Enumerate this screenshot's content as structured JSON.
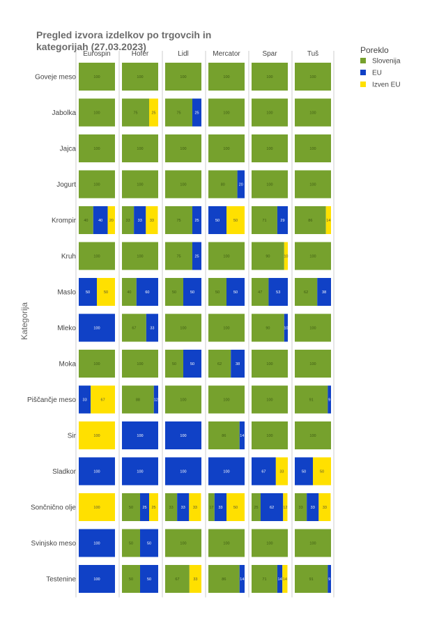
{
  "chart_data": {
    "type": "bar",
    "orientation": "horizontal",
    "stacked": "percent",
    "title": "Pregled izvora izdelkov po trgovcih in kategorijah (27.03.2023)",
    "title_lines": [
      "Pregled izvora izdelkov po trgovcih in",
      " kategorijah (27.03.2023)"
    ],
    "ylabel": "Kategorija",
    "xlabel": "",
    "facets": [
      "Eurospin",
      "Hofer",
      "Lidl",
      "Mercator",
      "Spar",
      "Tuš"
    ],
    "categories": [
      "Goveje meso",
      "Jabolka",
      "Jajca",
      "Jogurt",
      "Krompir",
      "Kruh",
      "Maslo",
      "Mleko",
      "Moka",
      "Piščančje meso",
      "Sir",
      "Sladkor",
      "Sončnično olje",
      "Svinjsko meso",
      "Testenine"
    ],
    "legend": {
      "title": "Poreklo",
      "position": "top-right",
      "items": [
        {
          "name": "Slovenija",
          "color": "#76a12d"
        },
        {
          "name": "EU",
          "color": "#1041c6"
        },
        {
          "name": "Izven EU",
          "color": "#ffe000"
        }
      ]
    },
    "series_order": [
      "Slovenija",
      "EU",
      "Izven EU"
    ],
    "values": {
      "Eurospin": [
        [
          100,
          0,
          0
        ],
        [
          100,
          0,
          0
        ],
        [
          100,
          0,
          0
        ],
        [
          100,
          0,
          0
        ],
        [
          40,
          40,
          20
        ],
        [
          100,
          0,
          0
        ],
        [
          0,
          50,
          50
        ],
        [
          0,
          100,
          0
        ],
        [
          100,
          0,
          0
        ],
        [
          0,
          33,
          67
        ],
        [
          0,
          0,
          100
        ],
        [
          0,
          100,
          0
        ],
        [
          0,
          0,
          100
        ],
        [
          0,
          100,
          0
        ],
        [
          0,
          100,
          0
        ]
      ],
      "Hofer": [
        [
          100,
          0,
          0
        ],
        [
          75,
          0,
          25
        ],
        [
          100,
          0,
          0
        ],
        [
          100,
          0,
          0
        ],
        [
          33,
          33,
          33
        ],
        [
          100,
          0,
          0
        ],
        [
          40,
          60,
          0
        ],
        [
          67,
          33,
          0
        ],
        [
          100,
          0,
          0
        ],
        [
          88,
          12,
          0
        ],
        [
          0,
          100,
          0
        ],
        [
          0,
          100,
          0
        ],
        [
          50,
          25,
          25
        ],
        [
          50,
          50,
          0
        ],
        [
          50,
          50,
          0
        ]
      ],
      "Lidl": [
        [
          100,
          0,
          0
        ],
        [
          75,
          25,
          0
        ],
        [
          100,
          0,
          0
        ],
        [
          100,
          0,
          0
        ],
        [
          75,
          25,
          0
        ],
        [
          75,
          25,
          0
        ],
        [
          50,
          50,
          0
        ],
        [
          100,
          0,
          0
        ],
        [
          50,
          50,
          0
        ],
        [
          100,
          0,
          0
        ],
        [
          0,
          100,
          0
        ],
        [
          0,
          100,
          0
        ],
        [
          33,
          33,
          33
        ],
        [
          100,
          0,
          0
        ],
        [
          67,
          0,
          33
        ]
      ],
      "Mercator": [
        [
          100,
          0,
          0
        ],
        [
          100,
          0,
          0
        ],
        [
          100,
          0,
          0
        ],
        [
          80,
          20,
          0
        ],
        [
          0,
          50,
          50
        ],
        [
          100,
          0,
          0
        ],
        [
          50,
          50,
          0
        ],
        [
          100,
          0,
          0
        ],
        [
          62,
          38,
          0
        ],
        [
          100,
          0,
          0
        ],
        [
          86,
          14,
          0
        ],
        [
          0,
          100,
          0
        ],
        [
          17,
          33,
          50
        ],
        [
          100,
          0,
          0
        ],
        [
          86,
          14,
          0
        ]
      ],
      "Spar": [
        [
          100,
          0,
          0
        ],
        [
          100,
          0,
          0
        ],
        [
          100,
          0,
          0
        ],
        [
          100,
          0,
          0
        ],
        [
          71,
          29,
          0
        ],
        [
          90,
          0,
          10
        ],
        [
          47,
          53,
          0
        ],
        [
          90,
          10,
          0
        ],
        [
          100,
          0,
          0
        ],
        [
          100,
          0,
          0
        ],
        [
          100,
          0,
          0
        ],
        [
          0,
          67,
          33
        ],
        [
          25,
          62,
          12
        ],
        [
          100,
          0,
          0
        ],
        [
          71,
          14,
          14
        ]
      ],
      "Tuš": [
        [
          100,
          0,
          0
        ],
        [
          100,
          0,
          0
        ],
        [
          100,
          0,
          0
        ],
        [
          100,
          0,
          0
        ],
        [
          86,
          0,
          14
        ],
        [
          100,
          0,
          0
        ],
        [
          62,
          38,
          0
        ],
        [
          100,
          0,
          0
        ],
        [
          100,
          0,
          0
        ],
        [
          91,
          9,
          0
        ],
        [
          100,
          0,
          0
        ],
        [
          0,
          50,
          50
        ],
        [
          33,
          33,
          33
        ],
        [
          100,
          0,
          0
        ],
        [
          91,
          9,
          0
        ]
      ]
    },
    "labels": {
      "Eurospin": [
        [
          "100",
          "",
          ""
        ],
        [
          "100",
          "",
          ""
        ],
        [
          "100",
          "",
          ""
        ],
        [
          "100",
          "",
          ""
        ],
        [
          "40",
          "40",
          "20"
        ],
        [
          "100",
          "",
          ""
        ],
        [
          "",
          "50",
          "50"
        ],
        [
          "",
          "100",
          ""
        ],
        [
          "100",
          "",
          ""
        ],
        [
          "",
          "33",
          "67"
        ],
        [
          "",
          "",
          "100"
        ],
        [
          "",
          "100",
          ""
        ],
        [
          "",
          "",
          "100"
        ],
        [
          "",
          "100",
          ""
        ],
        [
          "",
          "100",
          ""
        ]
      ],
      "Hofer": [
        [
          "100",
          "",
          ""
        ],
        [
          "75",
          "",
          "25"
        ],
        [
          "100",
          "",
          ""
        ],
        [
          "100",
          "",
          ""
        ],
        [
          "33",
          "33",
          "33"
        ],
        [
          "100",
          "",
          ""
        ],
        [
          "40",
          "60",
          ""
        ],
        [
          "67",
          "33",
          ""
        ],
        [
          "100",
          "",
          ""
        ],
        [
          "88",
          "12",
          ""
        ],
        [
          "",
          "100",
          ""
        ],
        [
          "",
          "100",
          ""
        ],
        [
          "50",
          "25",
          "25"
        ],
        [
          "50",
          "50",
          ""
        ],
        [
          "50",
          "50",
          ""
        ]
      ],
      "Lidl": [
        [
          "100",
          "",
          ""
        ],
        [
          "75",
          "25",
          ""
        ],
        [
          "100",
          "",
          ""
        ],
        [
          "100",
          "",
          ""
        ],
        [
          "75",
          "25",
          ""
        ],
        [
          "75",
          "25",
          ""
        ],
        [
          "50",
          "50",
          ""
        ],
        [
          "100",
          "",
          ""
        ],
        [
          "50",
          "50",
          ""
        ],
        [
          "100",
          "",
          ""
        ],
        [
          "",
          "100",
          ""
        ],
        [
          "",
          "100",
          ""
        ],
        [
          "33",
          "33",
          "33"
        ],
        [
          "100",
          "",
          ""
        ],
        [
          "67",
          "",
          "33"
        ]
      ],
      "Mercator": [
        [
          "100",
          "",
          ""
        ],
        [
          "100",
          "",
          ""
        ],
        [
          "100",
          "",
          ""
        ],
        [
          "80",
          "20",
          ""
        ],
        [
          "",
          "50",
          "50"
        ],
        [
          "100",
          "",
          ""
        ],
        [
          "50",
          "50",
          ""
        ],
        [
          "100",
          "",
          ""
        ],
        [
          "62",
          "38",
          ""
        ],
        [
          "100",
          "",
          ""
        ],
        [
          "86",
          "14",
          ""
        ],
        [
          "",
          "100",
          ""
        ],
        [
          "17",
          "33",
          "50"
        ],
        [
          "100",
          "",
          ""
        ],
        [
          "86",
          "14",
          ""
        ]
      ],
      "Spar": [
        [
          "100",
          "",
          ""
        ],
        [
          "100",
          "",
          ""
        ],
        [
          "100",
          "",
          ""
        ],
        [
          "100",
          "",
          ""
        ],
        [
          "71",
          "29",
          ""
        ],
        [
          "90",
          "",
          "10"
        ],
        [
          "47",
          "53",
          ""
        ],
        [
          "90",
          "10",
          ""
        ],
        [
          "100",
          "",
          ""
        ],
        [
          "100",
          "",
          ""
        ],
        [
          "100",
          "",
          ""
        ],
        [
          "",
          "67",
          "33"
        ],
        [
          "25",
          "62",
          "12"
        ],
        [
          "100",
          "",
          ""
        ],
        [
          "71",
          "14",
          "14"
        ]
      ],
      "Tuš": [
        [
          "100",
          "",
          ""
        ],
        [
          "100",
          "",
          ""
        ],
        [
          "100",
          "",
          ""
        ],
        [
          "100",
          "",
          ""
        ],
        [
          "86",
          "",
          "14"
        ],
        [
          "100",
          "",
          ""
        ],
        [
          "62",
          "38",
          ""
        ],
        [
          "100",
          "",
          ""
        ],
        [
          "100",
          "",
          ""
        ],
        [
          "91",
          "9",
          ""
        ],
        [
          "100",
          "",
          ""
        ],
        [
          "",
          "50",
          "50"
        ],
        [
          "33",
          "33",
          "33"
        ],
        [
          "100",
          "",
          ""
        ],
        [
          "91",
          "9",
          ""
        ]
      ]
    },
    "xlim": [
      0,
      100
    ],
    "grid": false
  }
}
